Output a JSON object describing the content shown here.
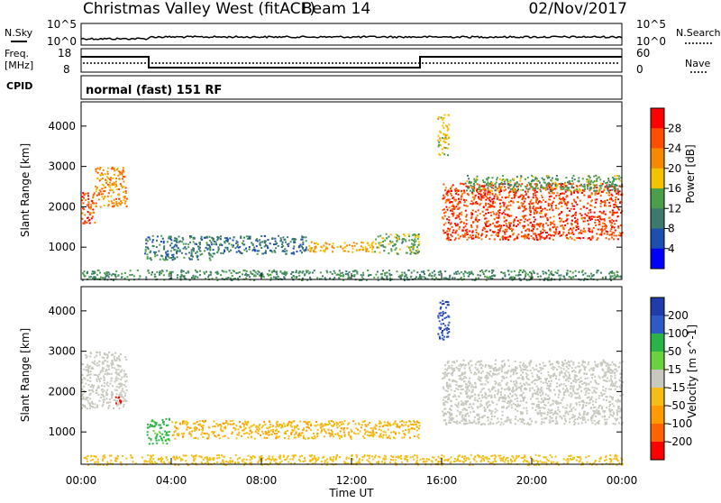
{
  "header": {
    "station": "Christmas Valley West (fitACF)",
    "beam": "Beam 14",
    "date": "02/Nov/2017"
  },
  "noise_panel": {
    "left_label": "N.Sky",
    "right_label": "N.Search",
    "left_ticks": [
      "10^5",
      "10^0"
    ],
    "right_ticks": [
      "10^5",
      "10^0"
    ]
  },
  "freq_panel": {
    "left_label_1": "Freq.",
    "left_label_2": "[MHz]",
    "right_label": "Nave",
    "left_ticks": [
      "18",
      "8"
    ],
    "right_ticks": [
      "60",
      "0"
    ]
  },
  "cpid": {
    "label": "CPID",
    "value": "normal (fast) 151 RF"
  },
  "x_axis": {
    "ticks": [
      "00:00",
      "04:00",
      "08:00",
      "12:00",
      "16:00",
      "20:00",
      "00:00"
    ],
    "label": "Time UT"
  },
  "colors": {
    "power": [
      "#0000ff",
      "#1c4fb0",
      "#3d7a6e",
      "#4b9e4a",
      "#f2c200",
      "#f58a00",
      "#ff4e00",
      "#ff0000"
    ],
    "velocity": [
      "#ff0000",
      "#ff6400",
      "#ff9a00",
      "#f5be14",
      "#c8c8be",
      "#69d23c",
      "#28b446",
      "#2d5ac8",
      "#1e3caa"
    ]
  },
  "chart_data": [
    {
      "type": "heatmap",
      "quantity": "Power",
      "ylabel": "Slant Range [km]",
      "xlabel": "Time UT",
      "y_ticks": [
        1000,
        2000,
        3000,
        4000
      ],
      "ylim": [
        200,
        4600
      ],
      "xlim_hours": [
        0,
        24
      ],
      "colorbar": {
        "label": "Power [dB]",
        "ticks": [
          "4",
          "8",
          "12",
          "16",
          "20",
          "24",
          "28"
        ],
        "range": [
          0,
          32
        ]
      },
      "features": [
        {
          "start_h": 0.0,
          "end_h": 0.6,
          "range_low_km": 1600,
          "range_high_km": 2400,
          "level": 26
        },
        {
          "start_h": 0.6,
          "end_h": 2.0,
          "range_low_km": 2000,
          "range_high_km": 3000,
          "level": 22
        },
        {
          "start_h": 2.8,
          "end_h": 6.0,
          "range_low_km": 700,
          "range_high_km": 1300,
          "level": 10
        },
        {
          "start_h": 6.0,
          "end_h": 10.0,
          "range_low_km": 850,
          "range_high_km": 1300,
          "level": 9
        },
        {
          "start_h": 10.0,
          "end_h": 13.0,
          "range_low_km": 900,
          "range_high_km": 1150,
          "level": 20
        },
        {
          "start_h": 13.0,
          "end_h": 15.0,
          "range_low_km": 850,
          "range_high_km": 1350,
          "level": 14
        },
        {
          "start_h": 15.8,
          "end_h": 16.3,
          "range_low_km": 3300,
          "range_high_km": 4300,
          "level": 18
        },
        {
          "start_h": 16.0,
          "end_h": 24.0,
          "range_low_km": 1200,
          "range_high_km": 2600,
          "level": 27
        },
        {
          "start_h": 17.0,
          "end_h": 24.0,
          "range_low_km": 2400,
          "range_high_km": 2800,
          "level": 14
        },
        {
          "start_h": 0.0,
          "end_h": 24.0,
          "range_low_km": 200,
          "range_high_km": 450,
          "level": 12
        }
      ]
    },
    {
      "type": "heatmap",
      "quantity": "Velocity",
      "ylabel": "Slant Range [km]",
      "xlabel": "Time UT",
      "y_ticks": [
        1000,
        2000,
        3000,
        4000
      ],
      "ylim": [
        200,
        4600
      ],
      "xlim_hours": [
        0,
        24
      ],
      "colorbar": {
        "label": "Velocity [m s^-1]",
        "ticks": [
          "200",
          "100",
          "50",
          "15",
          "-15",
          "-50",
          "-100",
          "-200"
        ],
        "range": [
          -250,
          250
        ]
      },
      "features": [
        {
          "start_h": 0.0,
          "end_h": 2.0,
          "range_low_km": 1600,
          "range_high_km": 3000,
          "velocity": 0
        },
        {
          "start_h": 1.5,
          "end_h": 1.8,
          "range_low_km": 1650,
          "range_high_km": 1900,
          "velocity": -220
        },
        {
          "start_h": 2.9,
          "end_h": 3.9,
          "range_low_km": 700,
          "range_high_km": 1350,
          "velocity": 60
        },
        {
          "start_h": 4.0,
          "end_h": 15.0,
          "range_low_km": 850,
          "range_high_km": 1300,
          "velocity": -45
        },
        {
          "start_h": 15.8,
          "end_h": 16.3,
          "range_low_km": 3300,
          "range_high_km": 4300,
          "velocity": 200
        },
        {
          "start_h": 16.0,
          "end_h": 24.0,
          "range_low_km": 1200,
          "range_high_km": 2800,
          "velocity": 0
        },
        {
          "start_h": 0.0,
          "end_h": 24.0,
          "range_low_km": 200,
          "range_high_km": 450,
          "velocity": -30
        }
      ]
    }
  ]
}
